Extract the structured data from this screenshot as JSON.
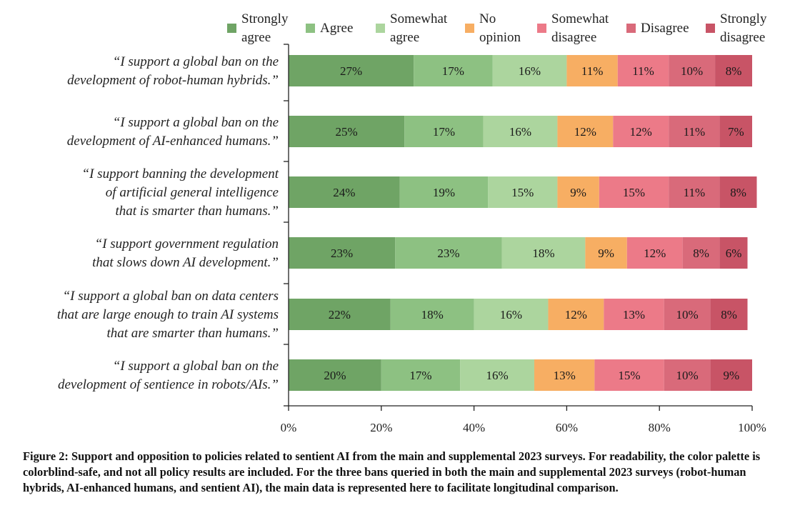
{
  "chart_data": {
    "type": "bar",
    "orientation": "horizontal",
    "stacked": true,
    "xlim": [
      0,
      100
    ],
    "x_ticks": [
      "0%",
      "20%",
      "40%",
      "60%",
      "80%",
      "100%"
    ],
    "x_tick_values": [
      0,
      20,
      40,
      60,
      80,
      100
    ],
    "grid": false,
    "legend_position": "top",
    "legend": [
      {
        "name": "Strongly agree",
        "lines": [
          "Strongly",
          "agree"
        ],
        "color": "#6fa465"
      },
      {
        "name": "Agree",
        "lines": [
          "Agree"
        ],
        "color": "#8dc182"
      },
      {
        "name": "Somewhat agree",
        "lines": [
          "Somewhat",
          "agree"
        ],
        "color": "#acd59e"
      },
      {
        "name": "No opinion",
        "lines": [
          "No",
          "opinion"
        ],
        "color": "#f7ae63"
      },
      {
        "name": "Somewhat disagree",
        "lines": [
          "Somewhat",
          "disagree"
        ],
        "color": "#ec7a88"
      },
      {
        "name": "Disagree",
        "lines": [
          "Disagree"
        ],
        "color": "#d96a7a"
      },
      {
        "name": "Strongly disagree",
        "lines": [
          "Strongly",
          "disagree"
        ],
        "color": "#c85466"
      }
    ],
    "categories": [
      {
        "lines": [
          "“I support a global ban on the",
          "development of robot-human hybrids.”"
        ]
      },
      {
        "lines": [
          "“I support a global ban on the",
          "development of AI-enhanced humans.”"
        ]
      },
      {
        "lines": [
          "“I support banning the development",
          "of artificial general intelligence",
          "that is smarter than humans.”"
        ]
      },
      {
        "lines": [
          "“I support government regulation",
          "that slows down AI development.”"
        ]
      },
      {
        "lines": [
          "“I support a global ban on data centers",
          "that are large enough to train AI systems",
          "that are smarter than humans.”"
        ]
      },
      {
        "lines": [
          "“I support a global ban on the",
          "development of sentience in robots/AIs.”"
        ]
      }
    ],
    "series": [
      {
        "name": "Strongly agree",
        "values": [
          27,
          25,
          24,
          23,
          22,
          20
        ]
      },
      {
        "name": "Agree",
        "values": [
          17,
          17,
          19,
          23,
          18,
          17
        ]
      },
      {
        "name": "Somewhat agree",
        "values": [
          16,
          16,
          15,
          18,
          16,
          16
        ]
      },
      {
        "name": "No opinion",
        "values": [
          11,
          12,
          9,
          9,
          12,
          13
        ]
      },
      {
        "name": "Somewhat disagree",
        "values": [
          11,
          12,
          15,
          12,
          13,
          15
        ]
      },
      {
        "name": "Disagree",
        "values": [
          10,
          11,
          11,
          8,
          10,
          10
        ]
      },
      {
        "name": "Strongly disagree",
        "values": [
          8,
          7,
          8,
          6,
          8,
          9
        ]
      }
    ],
    "value_suffix": "%"
  },
  "caption": "Figure 2: Support and opposition to policies related to sentient AI from the main and supplemental 2023 surveys. For readability, the color palette is colorblind-safe, and not all policy results are included. For the three bans queried in both the main and supplemental 2023 surveys (robot-human hybrids, AI-enhanced humans, and sentient AI), the main data is represented here to facilitate longitudinal comparison."
}
